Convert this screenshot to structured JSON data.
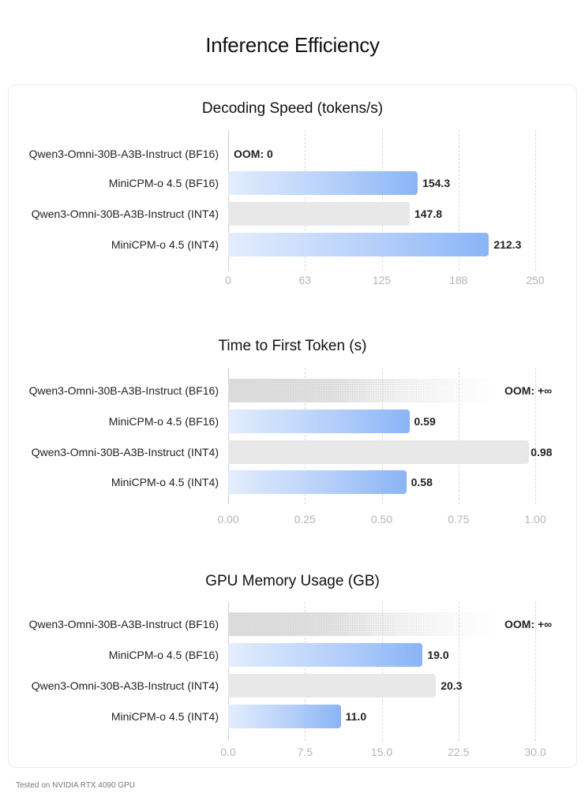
{
  "page": {
    "title": "Inference Efficiency",
    "footnote": "Tested on NVIDIA RTX 4090 GPU"
  },
  "colors": {
    "minicpm_bar": "#8ab4f6",
    "qwen_bar": "#e8e8e8",
    "oom_bar": "#dcdcdc"
  },
  "chart_data": [
    {
      "type": "bar",
      "orientation": "horizontal",
      "title": "Decoding Speed (tokens/s)",
      "categories": [
        "Qwen3-Omni-30B-A3B-Instruct (BF16)",
        "MiniCPM-o 4.5 (BF16)",
        "Qwen3-Omni-30B-A3B-Instruct (INT4)",
        "MiniCPM-o 4.5 (INT4)"
      ],
      "values": [
        0,
        154.3,
        147.8,
        212.3
      ],
      "value_labels": [
        "OOM: 0",
        "154.3",
        "147.8",
        "212.3"
      ],
      "bar_styles": [
        "oom",
        "blue",
        "grey",
        "blue"
      ],
      "xlim": [
        0,
        250
      ],
      "xticks": [
        "0",
        "63",
        "125",
        "188",
        "250"
      ],
      "grid": true,
      "xlabel": "",
      "ylabel": ""
    },
    {
      "type": "bar",
      "orientation": "horizontal",
      "title": "Time to First Token (s)",
      "categories": [
        "Qwen3-Omni-30B-A3B-Instruct (BF16)",
        "MiniCPM-o 4.5 (BF16)",
        "Qwen3-Omni-30B-A3B-Instruct (INT4)",
        "MiniCPM-o 4.5 (INT4)"
      ],
      "values": [
        null,
        0.59,
        0.98,
        0.58
      ],
      "value_labels": [
        "OOM: +∞",
        "0.59",
        "0.98",
        "0.58"
      ],
      "bar_styles": [
        "oom",
        "blue",
        "grey",
        "blue"
      ],
      "xlim": [
        0,
        1.0
      ],
      "xticks": [
        "0.00",
        "0.25",
        "0.50",
        "0.75",
        "1.00"
      ],
      "grid": true,
      "xlabel": "",
      "ylabel": ""
    },
    {
      "type": "bar",
      "orientation": "horizontal",
      "title": "GPU Memory Usage (GB)",
      "categories": [
        "Qwen3-Omni-30B-A3B-Instruct (BF16)",
        "MiniCPM-o 4.5 (BF16)",
        "Qwen3-Omni-30B-A3B-Instruct (INT4)",
        "MiniCPM-o 4.5 (INT4)"
      ],
      "values": [
        null,
        19.0,
        20.3,
        11.0
      ],
      "value_labels": [
        "OOM: +∞",
        "19.0",
        "20.3",
        "11.0"
      ],
      "bar_styles": [
        "oom",
        "blue",
        "grey",
        "blue"
      ],
      "xlim": [
        0,
        30
      ],
      "xticks": [
        "0.0",
        "7.5",
        "15.0",
        "22.5",
        "30.0"
      ],
      "grid": true,
      "xlabel": "",
      "ylabel": ""
    }
  ]
}
